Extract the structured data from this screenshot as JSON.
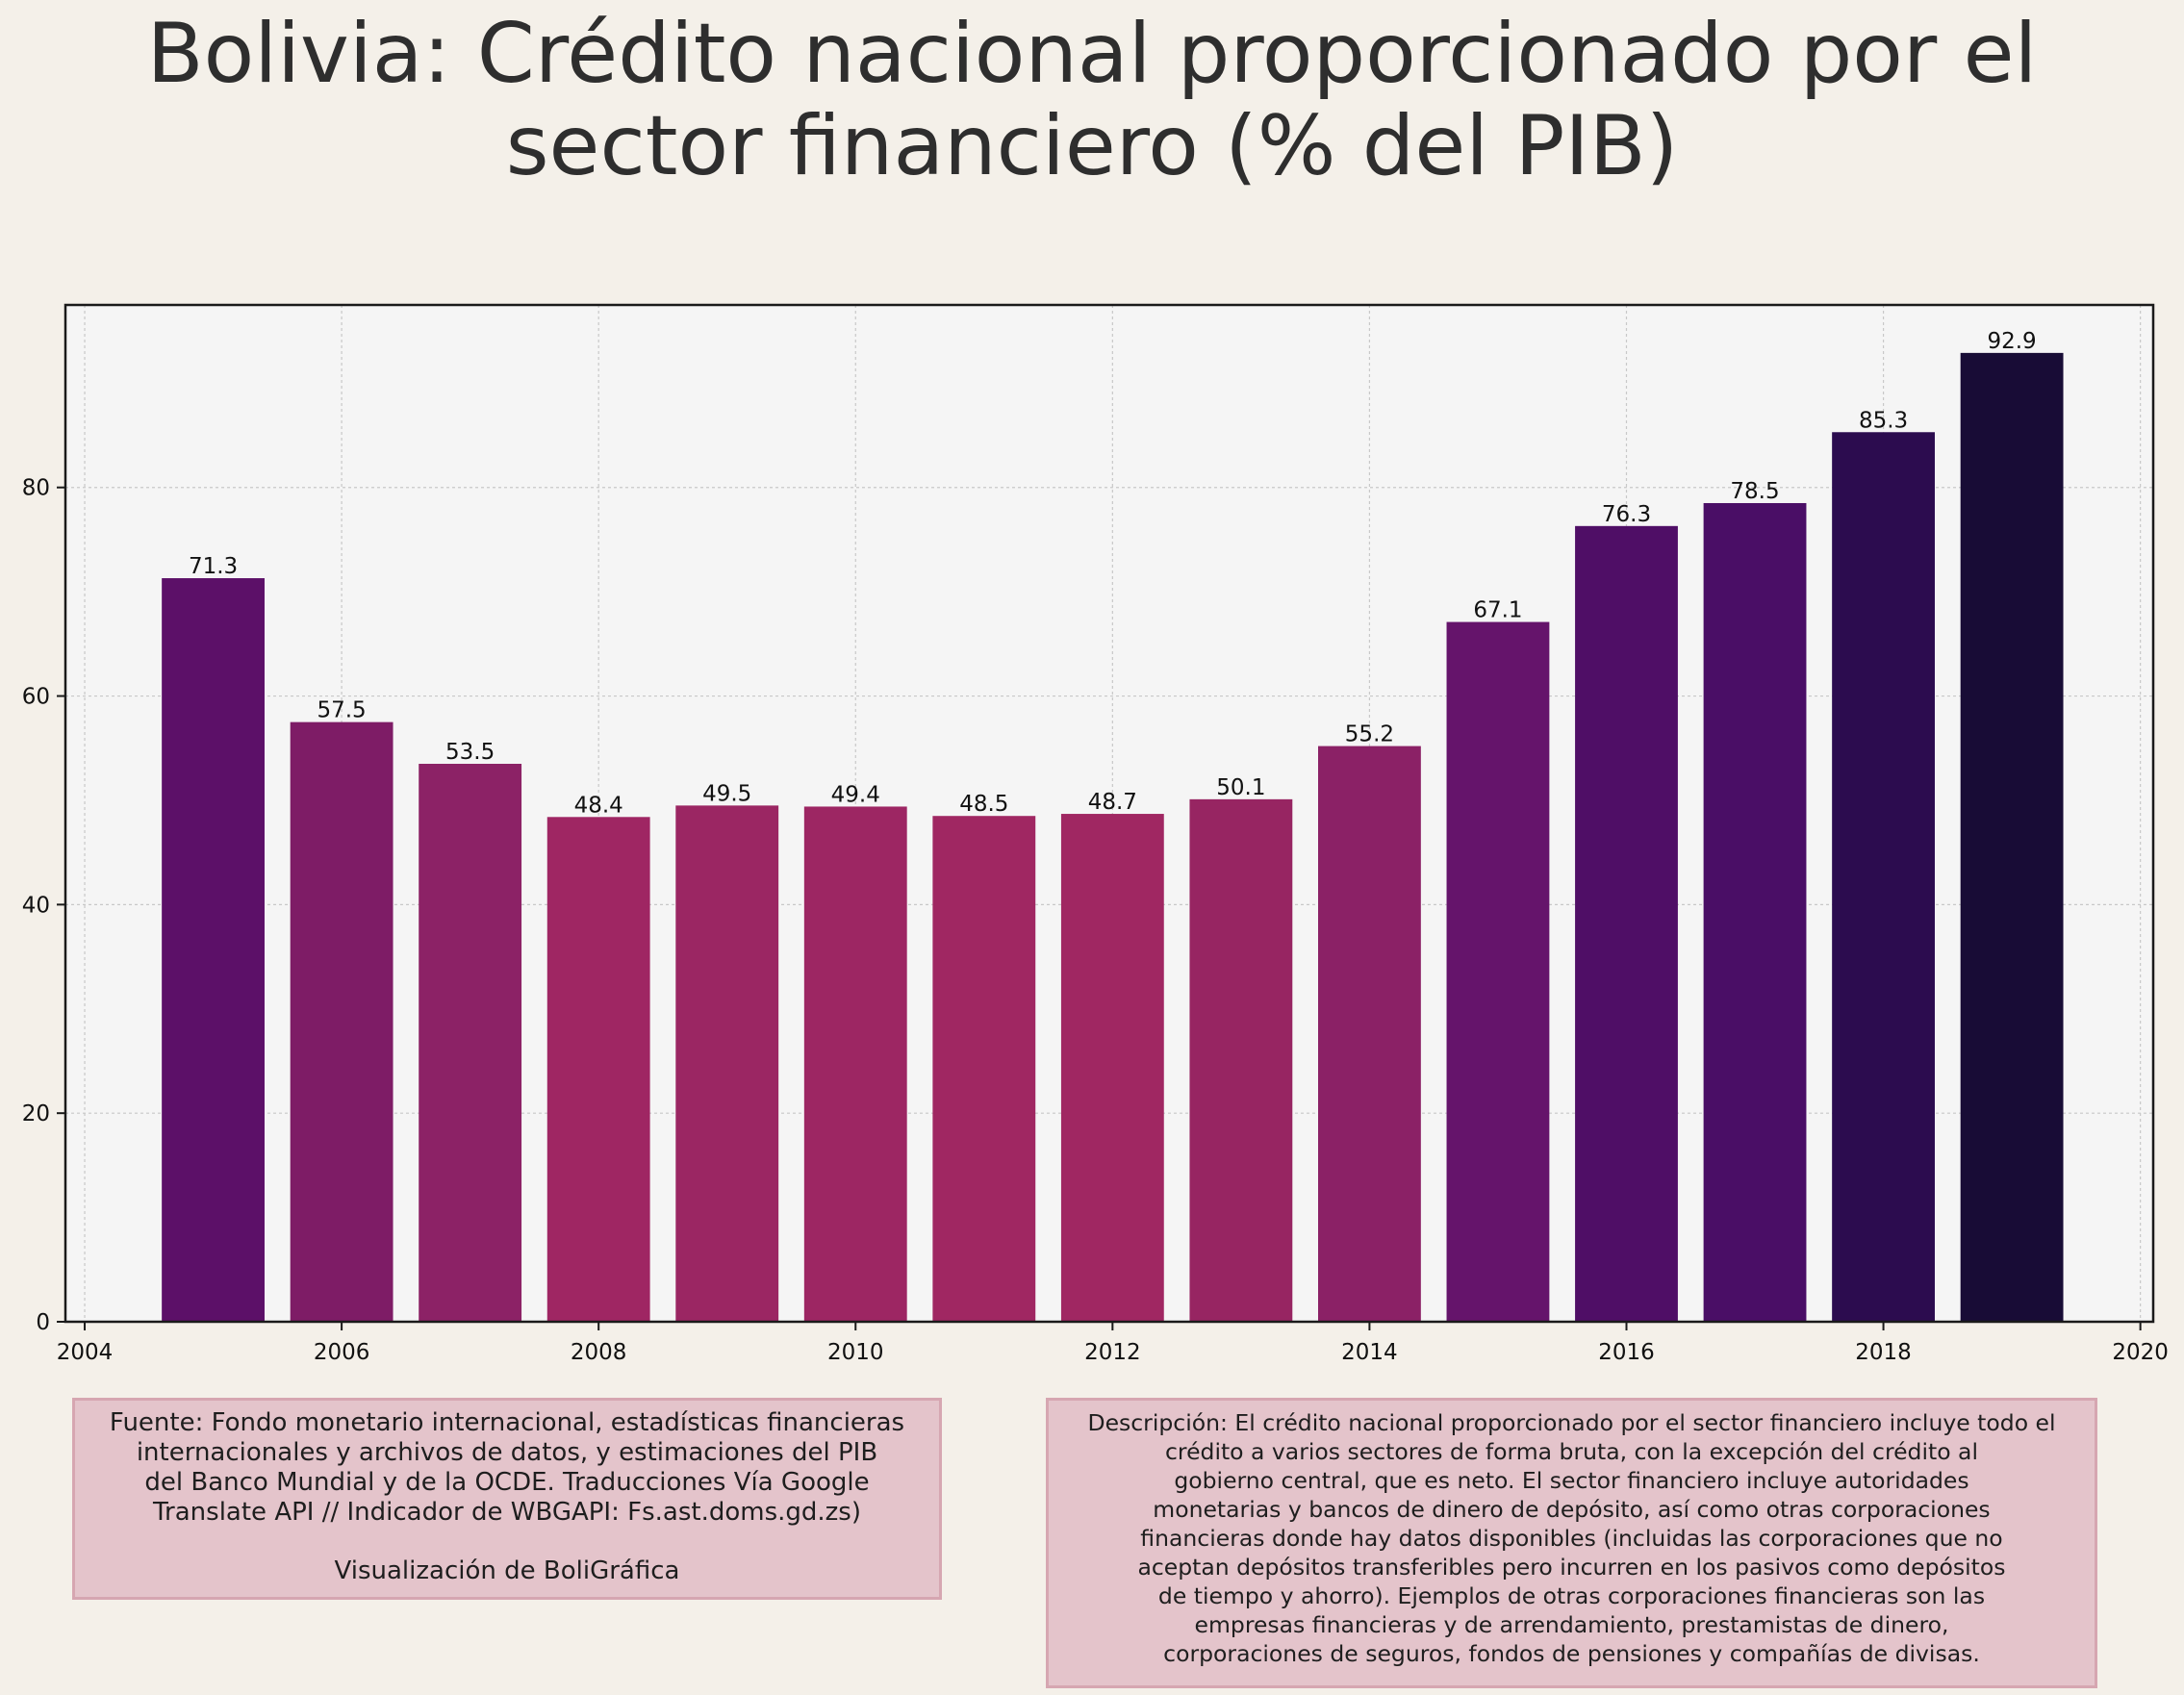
{
  "title": {
    "line1": "Bolivia:  Crédito nacional proporcionado por el",
    "line2": "sector financiero (% del PIB)"
  },
  "chart_data": {
    "type": "bar",
    "categories": [
      "2005",
      "2006",
      "2007",
      "2008",
      "2009",
      "2010",
      "2011",
      "2012",
      "2013",
      "2014",
      "2015",
      "2016",
      "2017",
      "2018",
      "2019"
    ],
    "x": [
      2005,
      2006,
      2007,
      2008,
      2009,
      2010,
      2011,
      2012,
      2013,
      2014,
      2015,
      2016,
      2017,
      2018,
      2019
    ],
    "values": [
      71.3,
      57.5,
      53.5,
      48.4,
      49.5,
      49.4,
      48.5,
      48.7,
      50.1,
      55.2,
      67.1,
      76.3,
      78.5,
      85.3,
      92.9
    ],
    "data_labels": [
      "71.3",
      "57.5",
      "53.5",
      "48.4",
      "49.5",
      "49.4",
      "48.5",
      "48.7",
      "50.1",
      "55.2",
      "67.1",
      "76.3",
      "78.5",
      "85.3",
      "92.9"
    ],
    "bar_colors": [
      "#5c1068",
      "#7e1c66",
      "#8c2266",
      "#9f2663",
      "#9b2663",
      "#9d2663",
      "#a02762",
      "#a02762",
      "#972562",
      "#8b2166",
      "#65146b",
      "#4f0e66",
      "#4a0e66",
      "#2c0c4f",
      "#180c36"
    ],
    "xlim": [
      2003.85,
      2020.1
    ],
    "ylim": [
      0,
      97.5
    ],
    "x_ticks": [
      2004,
      2006,
      2008,
      2010,
      2012,
      2014,
      2016,
      2018,
      2020
    ],
    "x_tick_labels": [
      "2004",
      "2006",
      "2008",
      "2010",
      "2012",
      "2014",
      "2016",
      "2018",
      "2020"
    ],
    "y_ticks": [
      0,
      20,
      40,
      60,
      80
    ],
    "y_tick_labels": [
      "0",
      "20",
      "40",
      "60",
      "80"
    ],
    "grid": true,
    "xlabel": "",
    "ylabel": ""
  },
  "source": {
    "lines": [
      "Fuente: Fondo monetario internacional, estadísticas financieras",
      "internacionales y archivos de datos, y estimaciones del PIB",
      "del Banco Mundial y de la OCDE. Traducciones Vía Google",
      "Translate API // Indicador de WBGAPI: Fs.ast.doms.gd.zs)"
    ],
    "credit": "Visualización de BoliGráfica"
  },
  "description": {
    "lines": [
      "Descripción: El crédito nacional proporcionado por el sector financiero incluye todo el",
      "crédito a varios sectores de forma bruta, con la excepción del crédito al",
      "gobierno central, que es neto. El sector financiero incluye autoridades",
      "monetarias y bancos de dinero de depósito, así como otras corporaciones",
      "financieras donde hay datos disponibles (incluidas las corporaciones que no",
      "aceptan depósitos transferibles pero incurren en los pasivos como depósitos",
      "de tiempo y ahorro). Ejemplos de otras corporaciones financieras son las",
      "empresas financieras y de arrendamiento, prestamistas de dinero,",
      "corporaciones de seguros, fondos de pensiones y compañías de divisas."
    ]
  },
  "colors": {
    "background": "#f4f0e9",
    "plot_background": "#f5f5f5",
    "grid": "#c8c8c8",
    "box_fill": "#e4c4cb",
    "box_border": "#d6a6b1"
  }
}
